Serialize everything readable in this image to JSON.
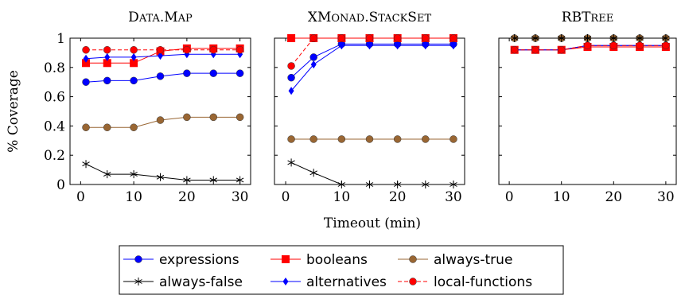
{
  "chart_data": {
    "type": "line",
    "ylabel": "% Coverage",
    "xlabel": "Timeout (min)",
    "x": [
      1,
      5,
      10,
      15,
      20,
      25,
      30
    ],
    "xticks": [
      0,
      10,
      20,
      30
    ],
    "yticks": [
      0,
      0.2,
      0.4,
      0.6,
      0.8,
      1
    ],
    "ytick_labels": [
      "0",
      "0.2",
      "0.4",
      "0.6",
      "0.8",
      "1"
    ],
    "xlim": [
      -2,
      32
    ],
    "ylim": [
      0,
      1
    ],
    "legend_position": "bottom",
    "series_styles": [
      {
        "name": "expressions",
        "color": "#0000ff",
        "marker": "circle",
        "dash": false
      },
      {
        "name": "booleans",
        "color": "#ff0000",
        "marker": "square",
        "dash": false
      },
      {
        "name": "always-true",
        "color": "#996633",
        "marker": "circle",
        "dash": false
      },
      {
        "name": "always-false",
        "color": "#000000",
        "marker": "star",
        "dash": false
      },
      {
        "name": "alternatives",
        "color": "#0000ff",
        "marker": "diamond",
        "dash": false
      },
      {
        "name": "local-functions",
        "color": "#ff0000",
        "marker": "circle",
        "dash": true
      }
    ],
    "panels": [
      {
        "title": "Data.Map",
        "show_yticks": true,
        "series": [
          {
            "name": "expressions",
            "values": [
              0.7,
              0.71,
              0.71,
              0.74,
              0.76,
              0.76,
              0.76
            ]
          },
          {
            "name": "booleans",
            "values": [
              0.83,
              0.83,
              0.83,
              0.91,
              0.93,
              0.93,
              0.93
            ]
          },
          {
            "name": "always-true",
            "values": [
              0.39,
              0.39,
              0.39,
              0.44,
              0.46,
              0.46,
              0.46
            ]
          },
          {
            "name": "always-false",
            "values": [
              0.14,
              0.07,
              0.07,
              0.05,
              0.03,
              0.03,
              0.03
            ]
          },
          {
            "name": "alternatives",
            "values": [
              0.86,
              0.87,
              0.87,
              0.88,
              0.89,
              0.89,
              0.89
            ]
          },
          {
            "name": "local-functions",
            "values": [
              0.92,
              0.92,
              0.92,
              0.92,
              0.92,
              0.92,
              0.92
            ]
          }
        ]
      },
      {
        "title": "XMonad.StackSet",
        "show_yticks": false,
        "series": [
          {
            "name": "expressions",
            "values": [
              0.73,
              0.87,
              0.96,
              0.96,
              0.96,
              0.96,
              0.96
            ]
          },
          {
            "name": "booleans",
            "values": [
              1.0,
              1.0,
              1.0,
              1.0,
              1.0,
              1.0,
              1.0
            ]
          },
          {
            "name": "always-true",
            "values": [
              0.31,
              0.31,
              0.31,
              0.31,
              0.31,
              0.31,
              0.31
            ]
          },
          {
            "name": "always-false",
            "values": [
              0.15,
              0.08,
              0.0,
              0.0,
              0.0,
              0.0,
              0.0
            ]
          },
          {
            "name": "alternatives",
            "values": [
              0.64,
              0.82,
              0.95,
              0.95,
              0.95,
              0.95,
              0.95
            ]
          },
          {
            "name": "local-functions",
            "values": [
              0.81,
              1.0,
              1.0,
              1.0,
              1.0,
              1.0,
              1.0
            ]
          }
        ]
      },
      {
        "title": "RBTree",
        "show_yticks": false,
        "series": [
          {
            "name": "expressions",
            "values": [
              0.92,
              0.92,
              0.92,
              0.95,
              0.95,
              0.95,
              0.95
            ]
          },
          {
            "name": "booleans",
            "values": [
              0.92,
              0.92,
              0.92,
              0.94,
              0.94,
              0.94,
              0.94
            ]
          },
          {
            "name": "always-true",
            "values": [
              1.0,
              1.0,
              1.0,
              1.0,
              1.0,
              1.0,
              1.0
            ]
          },
          {
            "name": "always-false",
            "values": [
              1.0,
              1.0,
              1.0,
              1.0,
              1.0,
              1.0,
              1.0
            ]
          },
          {
            "name": "alternatives",
            "values": [
              0.92,
              0.92,
              0.92,
              0.95,
              0.95,
              0.95,
              0.95
            ]
          },
          {
            "name": "local-functions",
            "values": [
              0.92,
              0.92,
              0.92,
              0.95,
              0.95,
              0.95,
              0.95
            ]
          }
        ]
      }
    ]
  }
}
